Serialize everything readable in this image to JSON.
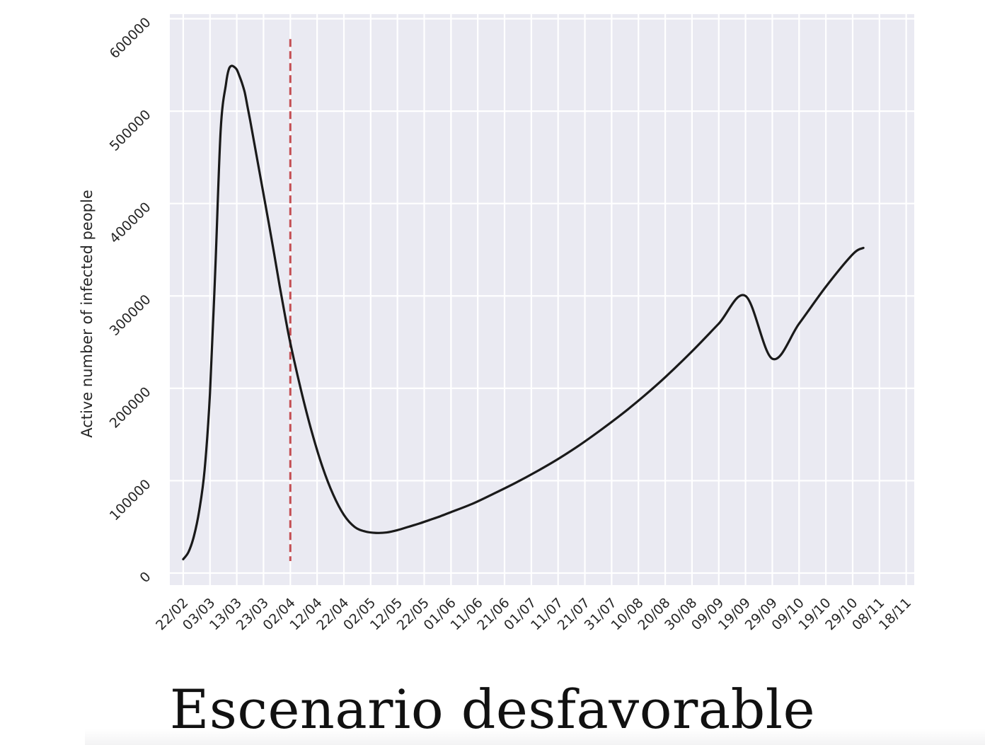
{
  "caption": "Escenario desfavorable",
  "chart_data": {
    "type": "line",
    "title": "",
    "xlabel": "",
    "ylabel": "Active number of infected people",
    "x_tick_labels": [
      "22/02",
      "03/03",
      "13/03",
      "23/03",
      "02/04",
      "12/04",
      "22/04",
      "02/05",
      "12/05",
      "22/05",
      "01/06",
      "11/06",
      "21/06",
      "01/07",
      "11/07",
      "21/07",
      "31/07",
      "10/08",
      "20/08",
      "30/08",
      "09/09",
      "19/09",
      "29/09",
      "09/10",
      "19/10",
      "29/10",
      "08/11",
      "18/11"
    ],
    "y_ticks": [
      0,
      100000,
      200000,
      300000,
      400000,
      500000,
      600000
    ],
    "ylim": [
      -13000,
      605000
    ],
    "xlim_day": [
      -5,
      273
    ],
    "grid": true,
    "vline": {
      "x_day": 40,
      "color": "#c44e52",
      "style": "dashed",
      "y_range": [
        13000,
        578000
      ]
    },
    "series": [
      {
        "color": "#1a1a1a",
        "x_day": [
          0,
          2,
          4,
          6,
          8,
          10,
          12,
          14,
          16,
          17,
          18,
          19,
          20,
          21,
          22,
          23,
          24,
          25,
          26,
          27,
          28,
          30,
          32,
          34,
          36,
          38,
          40,
          44,
          48,
          52,
          56,
          60,
          64,
          68,
          72,
          76,
          80,
          84,
          88,
          92,
          96,
          100,
          108,
          116,
          124,
          132,
          140,
          148,
          156,
          164,
          172,
          180,
          190,
          200,
          210,
          220,
          230,
          240,
          250,
          254
        ],
        "y": [
          15000,
          23000,
          40000,
          68000,
          112000,
          195000,
          330000,
          480000,
          530000,
          545000,
          549000,
          548000,
          545000,
          538000,
          530000,
          520000,
          505000,
          490000,
          474000,
          458000,
          442000,
          410000,
          378000,
          345000,
          311000,
          279000,
          249000,
          198000,
          153000,
          115000,
          85000,
          63000,
          50000,
          45000,
          43500,
          44000,
          46500,
          50000,
          53500,
          57500,
          61500,
          66000,
          75000,
          86000,
          97500,
          110000,
          123500,
          138500,
          155000,
          172500,
          191500,
          212000,
          240000,
          270000,
          300000,
          232000,
          270000,
          310000,
          345000,
          352000
        ]
      }
    ]
  }
}
